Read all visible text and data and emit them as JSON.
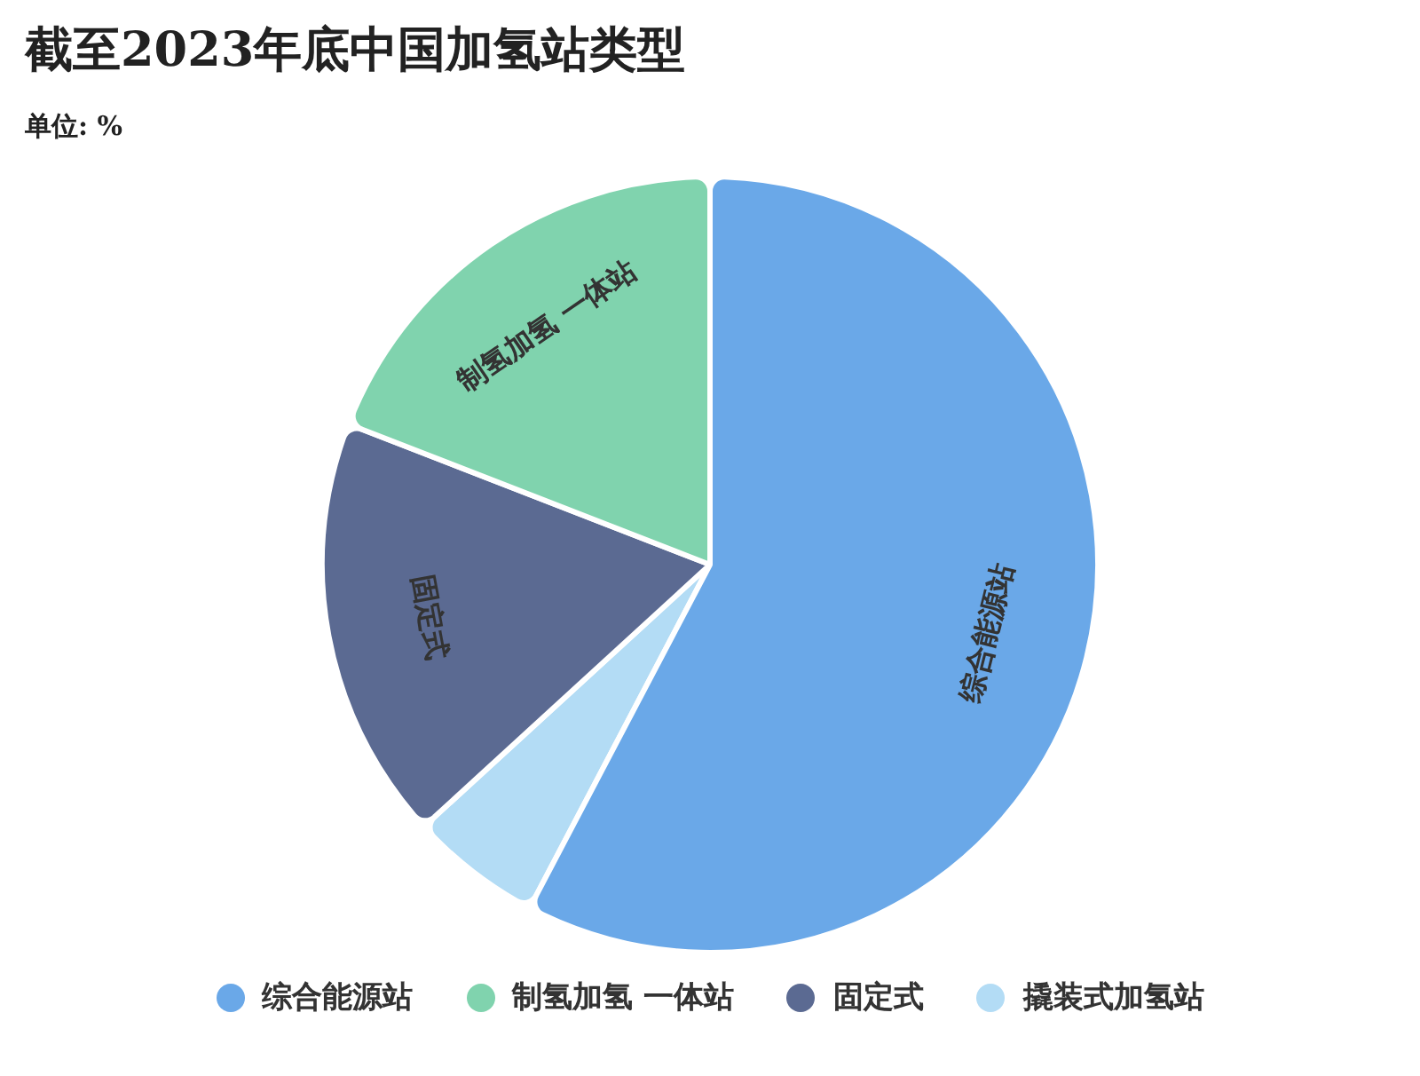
{
  "chart_data": {
    "type": "pie",
    "title": "截至2023年底中国加氢站类型",
    "subtitle": "单位: %",
    "categories": [
      "综合能源站",
      "制氢加氢 一体站",
      "固定式",
      "撬装式加氢站"
    ],
    "values": [
      57.7,
      19.1,
      17.7,
      5.5
    ],
    "colors": [
      "#6aa8e8",
      "#80d3ae",
      "#5b6a92",
      "#b3dcf5"
    ],
    "legend": "bottom"
  }
}
